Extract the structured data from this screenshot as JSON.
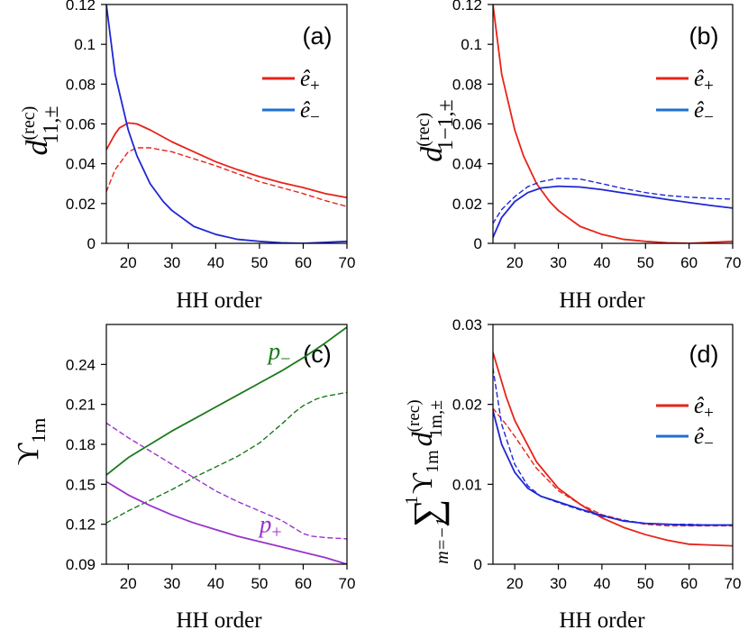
{
  "chart_data": [
    {
      "id": "a",
      "type": "line",
      "panel_label": "(a)",
      "xlabel": "HH order",
      "ylabel": {
        "main": "d",
        "sup": "(rec)",
        "sub": "11,±"
      },
      "xlim": [
        15,
        70
      ],
      "ylim": [
        0,
        0.12
      ],
      "xticks": [
        "20",
        "30",
        "40",
        "50",
        "60",
        "70"
      ],
      "yticks": [
        "0",
        "0.02",
        "0.04",
        "0.06",
        "0.08",
        "0.1",
        "0.12"
      ],
      "legend": {
        "position": "top-right",
        "entries": [
          {
            "label": "ê₊",
            "color": "#e8231a",
            "base": "ê",
            "sub": "+"
          },
          {
            "label": "ê₋",
            "color": "#1f27d6",
            "base": "ê",
            "sub": "−"
          }
        ]
      },
      "series": [
        {
          "name": "e+ solid",
          "color": "#e8231a",
          "style": "solid",
          "x": [
            15,
            17,
            18,
            20,
            22,
            25,
            30,
            35,
            40,
            45,
            50,
            55,
            60,
            65,
            70
          ],
          "y": [
            0.047,
            0.055,
            0.058,
            0.0605,
            0.06,
            0.057,
            0.051,
            0.046,
            0.041,
            0.037,
            0.0335,
            0.0305,
            0.028,
            0.025,
            0.023
          ]
        },
        {
          "name": "e+ dashed",
          "color": "#e8231a",
          "style": "dashed",
          "x": [
            15,
            17,
            20,
            22,
            25,
            30,
            35,
            40,
            45,
            50,
            55,
            60,
            65,
            70
          ],
          "y": [
            0.026,
            0.037,
            0.046,
            0.048,
            0.048,
            0.046,
            0.0425,
            0.039,
            0.035,
            0.031,
            0.028,
            0.025,
            0.0215,
            0.0185
          ]
        },
        {
          "name": "e- solid",
          "color": "#1f27d6",
          "style": "solid",
          "x": [
            15,
            17,
            20,
            22,
            25,
            28,
            30,
            35,
            40,
            45,
            50,
            55,
            60,
            65,
            70
          ],
          "y": [
            0.12,
            0.085,
            0.057,
            0.044,
            0.03,
            0.021,
            0.0165,
            0.0085,
            0.0045,
            0.002,
            0.001,
            0.0003,
            0.0,
            0.0005,
            0.001
          ]
        }
      ]
    },
    {
      "id": "b",
      "type": "line",
      "panel_label": "(b)",
      "xlabel": "HH order",
      "ylabel": {
        "main": "d",
        "sup": "(rec)",
        "sub": "1−1,±"
      },
      "xlim": [
        15,
        70
      ],
      "ylim": [
        0,
        0.12
      ],
      "xticks": [
        "20",
        "30",
        "40",
        "50",
        "60",
        "70"
      ],
      "yticks": [
        "0",
        "0.02",
        "0.04",
        "0.06",
        "0.08",
        "0.1",
        "0.12"
      ],
      "legend": {
        "position": "top-right",
        "entries": [
          {
            "label": "ê₊",
            "color": "#e8231a",
            "base": "ê",
            "sub": "+"
          },
          {
            "label": "ê₋",
            "color": "#1f27d6",
            "base": "ê",
            "sub": "−"
          }
        ]
      },
      "series": [
        {
          "name": "e+ solid",
          "color": "#e8231a",
          "style": "solid",
          "x": [
            15,
            17,
            20,
            22,
            25,
            28,
            30,
            35,
            40,
            45,
            50,
            55,
            60,
            65,
            70
          ],
          "y": [
            0.12,
            0.085,
            0.057,
            0.044,
            0.03,
            0.021,
            0.0165,
            0.0085,
            0.0045,
            0.002,
            0.001,
            0.0003,
            0.0,
            0.0005,
            0.001
          ]
        },
        {
          "name": "e- solid",
          "color": "#1f27d6",
          "style": "solid",
          "x": [
            15,
            17,
            20,
            23,
            26,
            30,
            35,
            40,
            45,
            50,
            55,
            60,
            65,
            70
          ],
          "y": [
            0.003,
            0.013,
            0.021,
            0.0255,
            0.0278,
            0.0287,
            0.0283,
            0.027,
            0.0253,
            0.0237,
            0.022,
            0.0205,
            0.019,
            0.0177
          ]
        },
        {
          "name": "e- dashed",
          "color": "#1f27d6",
          "style": "dashed",
          "x": [
            15,
            17,
            20,
            23,
            26,
            30,
            35,
            40,
            45,
            50,
            55,
            60,
            65,
            70
          ],
          "y": [
            0.01,
            0.017,
            0.0235,
            0.0285,
            0.031,
            0.0327,
            0.0323,
            0.03,
            0.0275,
            0.0255,
            0.024,
            0.0232,
            0.0226,
            0.0222
          ]
        }
      ]
    },
    {
      "id": "c",
      "type": "line",
      "panel_label": "(c)",
      "xlabel": "HH order",
      "ylabel": {
        "main": "ϒ",
        "sub": "1m"
      },
      "xlim": [
        15,
        70
      ],
      "ylim": [
        0.09,
        0.27
      ],
      "xticks": [
        "20",
        "30",
        "40",
        "50",
        "60",
        "70"
      ],
      "yticks": [
        "0.09",
        "0.12",
        "0.15",
        "0.18",
        "0.21",
        "0.24"
      ],
      "annotations": [
        {
          "base": "p",
          "sub": "−",
          "color": "#1b7a1b",
          "x": 52,
          "y": 0.244
        },
        {
          "base": "p",
          "sub": "+",
          "color": "#9933cc",
          "x": 50,
          "y": 0.114
        }
      ],
      "series": [
        {
          "name": "p- solid",
          "color": "#1b7a1b",
          "style": "solid",
          "x": [
            15,
            20,
            25,
            30,
            35,
            40,
            45,
            50,
            55,
            60,
            65,
            70
          ],
          "y": [
            0.157,
            0.17,
            0.18,
            0.19,
            0.199,
            0.208,
            0.217,
            0.226,
            0.235,
            0.245,
            0.256,
            0.268
          ]
        },
        {
          "name": "p- dashed",
          "color": "#1b7a1b",
          "style": "dashed",
          "x": [
            15,
            20,
            25,
            30,
            35,
            40,
            45,
            50,
            55,
            58,
            60,
            63,
            65,
            70
          ],
          "y": [
            0.121,
            0.13,
            0.138,
            0.146,
            0.155,
            0.163,
            0.171,
            0.181,
            0.195,
            0.204,
            0.209,
            0.214,
            0.216,
            0.219
          ]
        },
        {
          "name": "p+ dashed",
          "color": "#9933cc",
          "style": "dashed",
          "x": [
            15,
            20,
            25,
            30,
            35,
            40,
            45,
            50,
            55,
            58,
            60,
            62,
            65,
            70
          ],
          "y": [
            0.196,
            0.185,
            0.175,
            0.165,
            0.155,
            0.145,
            0.137,
            0.13,
            0.123,
            0.117,
            0.113,
            0.111,
            0.11,
            0.109
          ]
        },
        {
          "name": "p+ solid",
          "color": "#9933cc",
          "style": "solid",
          "x": [
            15,
            20,
            25,
            30,
            35,
            40,
            45,
            50,
            55,
            60,
            65,
            70
          ],
          "y": [
            0.152,
            0.142,
            0.134,
            0.127,
            0.121,
            0.116,
            0.111,
            0.107,
            0.103,
            0.099,
            0.095,
            0.09
          ]
        }
      ]
    },
    {
      "id": "d",
      "type": "line",
      "panel_label": "(d)",
      "xlabel": "HH order",
      "ylabel": {
        "sum_top": "1",
        "sum_symbol": "∑",
        "sum_bottom": "m=−1",
        "main": "ϒ",
        "sub": "1m",
        "d": "d",
        "d_sup": "(rec)",
        "d_sub": "1m,±"
      },
      "xlim": [
        15,
        70
      ],
      "ylim": [
        0,
        0.03
      ],
      "xticks": [
        "20",
        "30",
        "40",
        "50",
        "60",
        "70"
      ],
      "yticks": [
        "0",
        "0.01",
        "0.02",
        "0.03"
      ],
      "legend": {
        "position": "right",
        "entries": [
          {
            "label": "ê₊",
            "color": "#e8231a",
            "base": "ê",
            "sub": "+"
          },
          {
            "label": "ê₋",
            "color": "#1f27d6",
            "base": "ê",
            "sub": "−"
          }
        ]
      },
      "series": [
        {
          "name": "e+ solid",
          "color": "#e8231a",
          "style": "solid",
          "x": [
            15,
            18,
            20,
            25,
            30,
            35,
            40,
            45,
            50,
            55,
            60,
            65,
            70
          ],
          "y": [
            0.0265,
            0.021,
            0.018,
            0.0128,
            0.0095,
            0.0075,
            0.0058,
            0.0046,
            0.0037,
            0.003,
            0.0025,
            0.0024,
            0.0023
          ]
        },
        {
          "name": "e+ dashed",
          "color": "#e8231a",
          "style": "dashed",
          "x": [
            15,
            18,
            20,
            25,
            30,
            35,
            40,
            45,
            50,
            55,
            60,
            65,
            70
          ],
          "y": [
            0.0195,
            0.0175,
            0.016,
            0.012,
            0.0092,
            0.0075,
            0.0062,
            0.0055,
            0.005,
            0.0048,
            0.0048,
            0.0048,
            0.0048
          ]
        },
        {
          "name": "e- solid",
          "color": "#1f27d6",
          "style": "solid",
          "x": [
            15,
            17,
            20,
            23,
            26,
            30,
            35,
            40,
            45,
            50,
            55,
            60,
            65,
            70
          ],
          "y": [
            0.0192,
            0.015,
            0.0115,
            0.0095,
            0.0085,
            0.0078,
            0.0069,
            0.0061,
            0.0054,
            0.0051,
            0.005,
            0.0049,
            0.0049,
            0.0049
          ]
        },
        {
          "name": "e- dashed",
          "color": "#1f27d6",
          "style": "dashed",
          "x": [
            15,
            17,
            20,
            23,
            26,
            30,
            35,
            40,
            45,
            50,
            55,
            60,
            65,
            70
          ],
          "y": [
            0.0245,
            0.0175,
            0.0125,
            0.0098,
            0.0085,
            0.0077,
            0.0068,
            0.006,
            0.0055,
            0.0051,
            0.005,
            0.005,
            0.0049,
            0.0049
          ]
        }
      ]
    }
  ]
}
